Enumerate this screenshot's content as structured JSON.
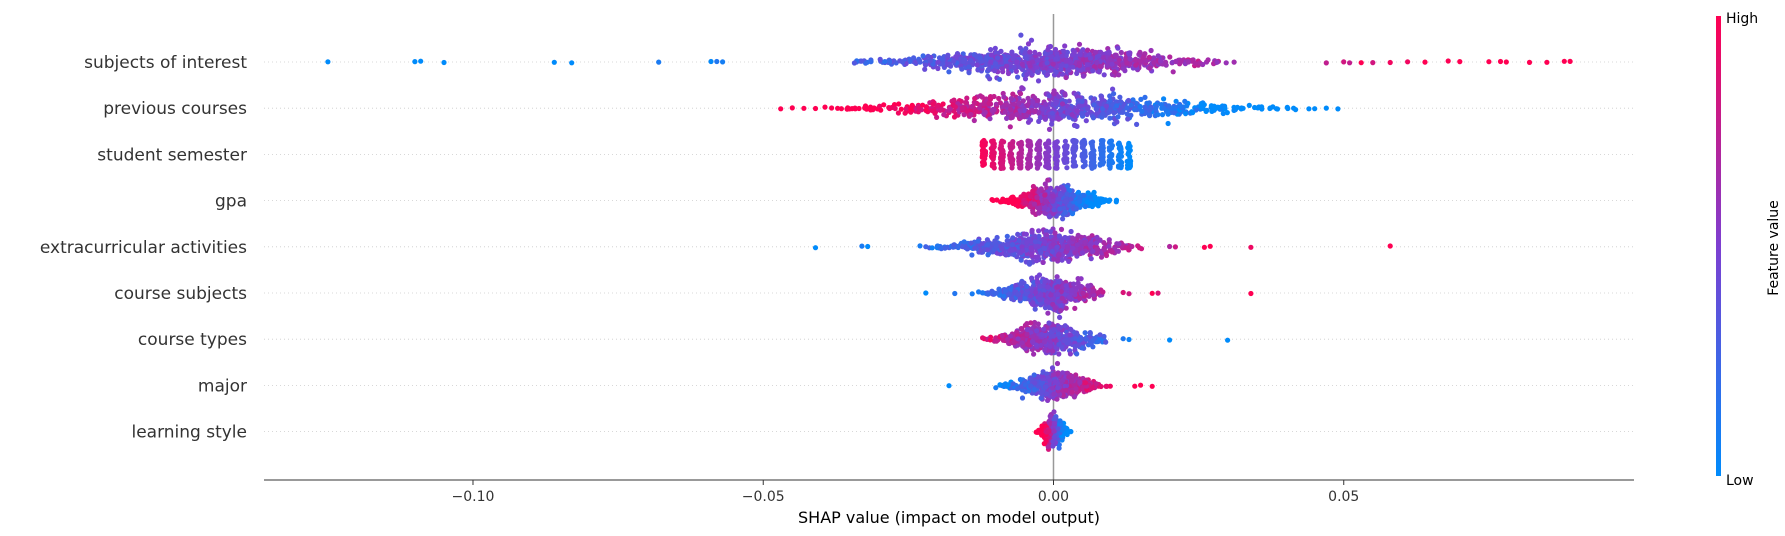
{
  "chart_data": {
    "type": "scatter",
    "subtype": "shap-beeswarm",
    "xlabel": "SHAP value (impact on model output)",
    "xlim": [
      -0.136,
      0.1
    ],
    "xticks": [
      -0.1,
      -0.05,
      0.0,
      0.05
    ],
    "xtick_labels": [
      "−0.10",
      "−0.05",
      "0.00",
      "0.05"
    ],
    "grid": "horizontal dotted per feature",
    "colorbar": {
      "title": "Feature value",
      "high_label": "High",
      "low_label": "Low",
      "high_color": "#ff0052",
      "low_color": "#008bfb"
    },
    "features": [
      {
        "name": "subjects of interest",
        "min": -0.125,
        "max": 0.089,
        "core": [
          -0.035,
          0.033
        ],
        "density": 900,
        "sign": 1,
        "outliers": [
          -0.125,
          -0.11,
          -0.109,
          -0.105,
          -0.086,
          -0.083,
          -0.068,
          -0.059,
          -0.058,
          -0.057,
          0.047,
          0.05,
          0.051,
          0.053,
          0.055,
          0.058,
          0.061,
          0.064,
          0.068,
          0.07,
          0.075,
          0.077,
          0.078,
          0.082,
          0.085,
          0.088,
          0.089
        ]
      },
      {
        "name": "previous courses",
        "min": -0.047,
        "max": 0.049,
        "core": [
          -0.04,
          0.042
        ],
        "density": 800,
        "sign": -1,
        "outliers": [
          -0.047,
          -0.045,
          -0.043,
          -0.041,
          0.044,
          0.045,
          0.047,
          0.049
        ]
      },
      {
        "name": "student semester",
        "min": -0.012,
        "max": 0.013,
        "core": [
          -0.012,
          0.013
        ],
        "density": 500,
        "sign": -1,
        "bands": 17,
        "outliers": []
      },
      {
        "name": "gpa",
        "min": -0.011,
        "max": 0.011,
        "core": [
          -0.011,
          0.011
        ],
        "density": 600,
        "sign": -1,
        "outliers": []
      },
      {
        "name": "extracurricular activities",
        "min": -0.041,
        "max": 0.058,
        "core": [
          -0.022,
          0.016
        ],
        "density": 700,
        "sign": 1,
        "outliers": [
          -0.041,
          -0.033,
          -0.032,
          -0.023,
          -0.022,
          -0.02,
          0.02,
          0.021,
          0.026,
          0.027,
          0.034,
          0.058
        ]
      },
      {
        "name": "course subjects",
        "min": -0.022,
        "max": 0.034,
        "core": [
          -0.013,
          0.009
        ],
        "density": 600,
        "sign": 1,
        "outliers": [
          -0.022,
          -0.017,
          -0.014,
          0.012,
          0.013,
          0.017,
          0.018,
          0.034
        ]
      },
      {
        "name": "course types",
        "min": -0.013,
        "max": 0.03,
        "core": [
          -0.013,
          0.01
        ],
        "density": 550,
        "sign": -1,
        "outliers": [
          0.012,
          0.013,
          0.02,
          0.03
        ]
      },
      {
        "name": "major",
        "min": -0.018,
        "max": 0.017,
        "core": [
          -0.01,
          0.01
        ],
        "density": 450,
        "sign": 1,
        "outliers": [
          -0.018,
          0.014,
          0.015,
          0.017
        ]
      },
      {
        "name": "learning style",
        "min": -0.003,
        "max": 0.003,
        "core": [
          -0.003,
          0.003
        ],
        "density": 350,
        "sign": -1,
        "outliers": []
      }
    ]
  }
}
